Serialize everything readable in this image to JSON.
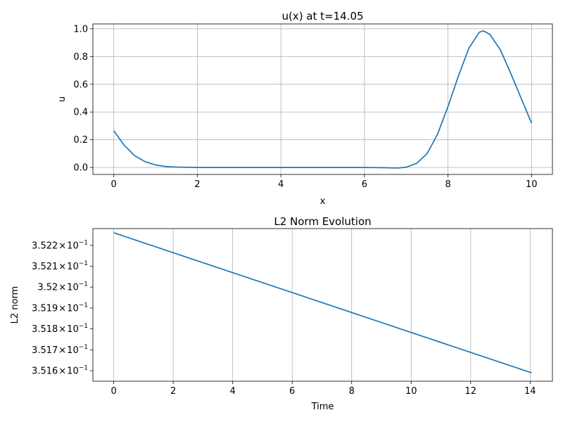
{
  "chart_data": [
    {
      "type": "line",
      "title": "u(x) at t=14.05",
      "xlabel": "x",
      "ylabel": "u",
      "xlim": [
        -0.5,
        10.5
      ],
      "ylim": [
        -0.05,
        1.035
      ],
      "grid": true,
      "x_ticks": [
        0,
        2,
        4,
        6,
        8,
        10
      ],
      "y_ticks": [
        0.0,
        0.2,
        0.4,
        0.6,
        0.8,
        1.0
      ],
      "x_tick_labels": [
        "0",
        "2",
        "4",
        "6",
        "8",
        "10"
      ],
      "y_tick_labels": [
        "0.0",
        "0.2",
        "0.4",
        "0.6",
        "0.8",
        "1.0"
      ],
      "color": "#1f77b4",
      "series": [
        {
          "x": [
            0,
            0.25,
            0.5,
            0.75,
            1.0,
            1.25,
            1.5,
            2.0,
            3.0,
            4.0,
            5.0,
            6.0,
            6.4,
            6.8,
            7.0,
            7.25,
            7.5,
            7.75,
            8.0,
            8.25,
            8.5,
            8.75,
            8.85,
            9.0,
            9.25,
            9.5,
            9.75,
            10.0
          ],
          "y": [
            0.265,
            0.16,
            0.085,
            0.042,
            0.018,
            0.007,
            0.003,
            0.0,
            0.0,
            0.0,
            0.0,
            0.0,
            -0.001,
            -0.004,
            0.002,
            0.03,
            0.1,
            0.24,
            0.44,
            0.66,
            0.86,
            0.975,
            0.985,
            0.96,
            0.85,
            0.68,
            0.5,
            0.32
          ]
        }
      ]
    },
    {
      "type": "line",
      "title": "L2 Norm Evolution",
      "xlabel": "Time",
      "ylabel": "L2 norm",
      "xlim": [
        -0.7,
        14.75
      ],
      "ylim": [
        0.35155,
        0.35228
      ],
      "yscale": "log",
      "grid": "x-major only",
      "x_ticks": [
        0,
        2,
        4,
        6,
        8,
        10,
        12,
        14
      ],
      "x_tick_labels": [
        "0",
        "2",
        "4",
        "6",
        "8",
        "10",
        "12",
        "14"
      ],
      "y_ticks": [
        0.3516,
        0.3517,
        0.3518,
        0.3519,
        0.352,
        0.3521,
        0.3522
      ],
      "y_tick_labels": [
        {
          "mantissa": "3.516",
          "times": "×",
          "base": "10",
          "exp": "−1"
        },
        {
          "mantissa": "3.517",
          "times": "×",
          "base": "10",
          "exp": "−1"
        },
        {
          "mantissa": "3.518",
          "times": "×",
          "base": "10",
          "exp": "−1"
        },
        {
          "mantissa": "3.519",
          "times": "×",
          "base": "10",
          "exp": "−1"
        },
        {
          "mantissa": "3.52",
          "times": "×",
          "base": "10",
          "exp": "−1"
        },
        {
          "mantissa": "3.521",
          "times": "×",
          "base": "10",
          "exp": "−1"
        },
        {
          "mantissa": "3.522",
          "times": "×",
          "base": "10",
          "exp": "−1"
        }
      ],
      "color": "#1f77b4",
      "series": [
        {
          "x": [
            0,
            14.05
          ],
          "y": [
            0.35226,
            0.35159
          ]
        }
      ]
    }
  ]
}
